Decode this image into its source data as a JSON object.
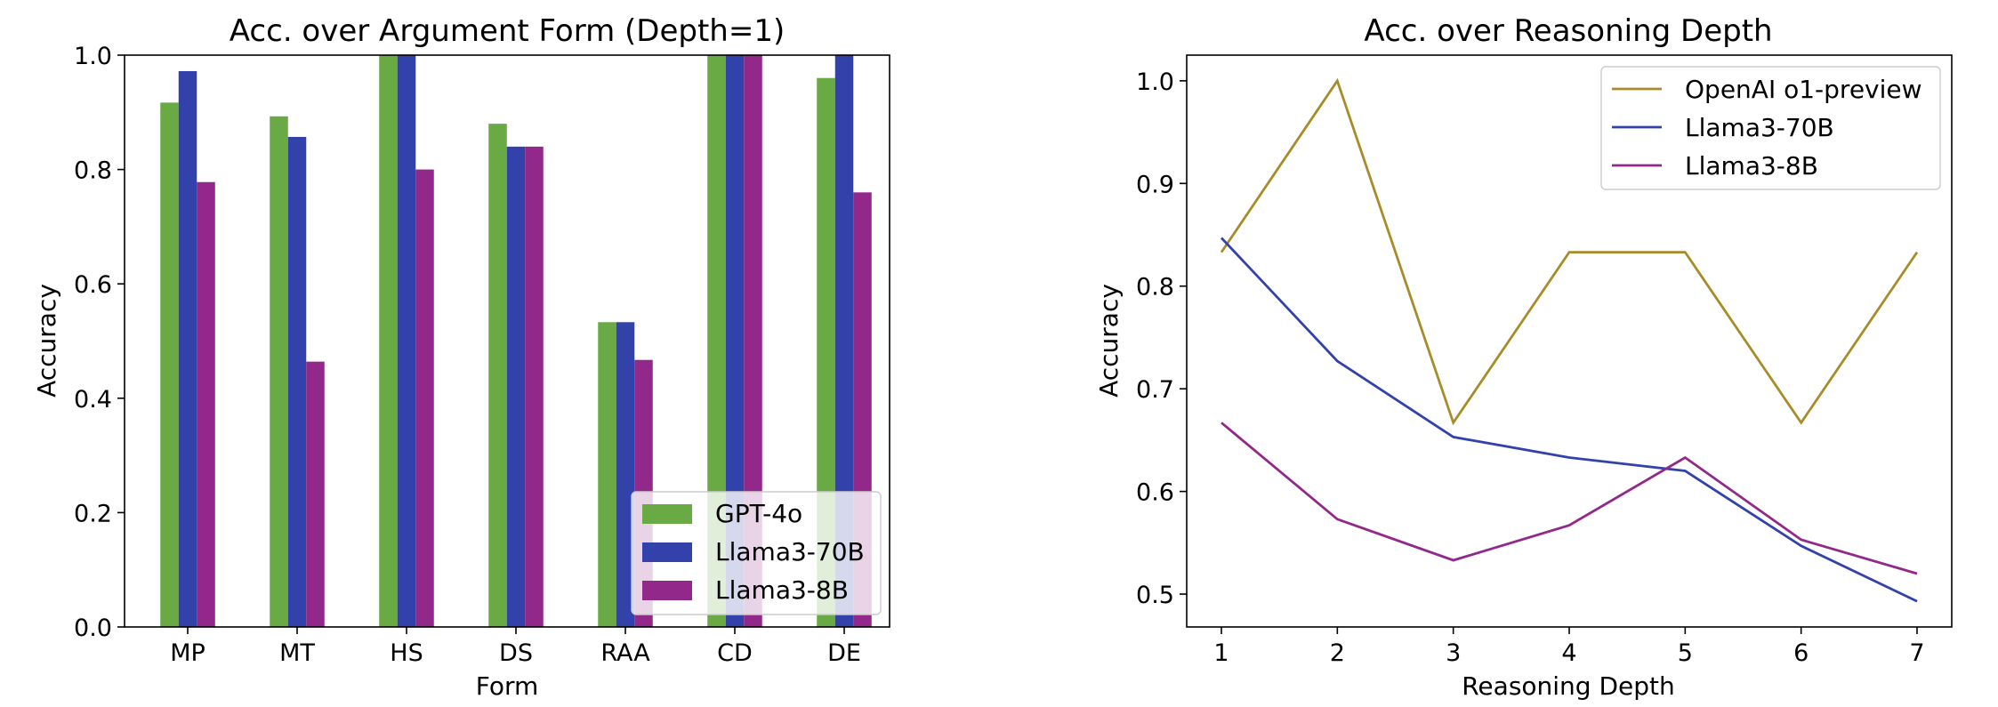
{
  "colors": {
    "gpt4o": "#6aaa45",
    "llama70b": "#3242aa",
    "llama8b": "#922889",
    "o1preview": "#a88c2a"
  },
  "chart_data": [
    {
      "type": "bar",
      "title": "Acc. over Argument Form (Depth=1)",
      "xlabel": "Form",
      "ylabel": "Accuracy",
      "ylim": [
        0,
        1.0
      ],
      "yticks": [
        "0.0",
        "0.2",
        "0.4",
        "0.6",
        "0.8",
        "1.0"
      ],
      "categories": [
        "MP",
        "MT",
        "HS",
        "DS",
        "RAA",
        "CD",
        "DE"
      ],
      "legend_position": "lower-right",
      "series": [
        {
          "name": "GPT-4o",
          "color": "#6aaa45",
          "values": [
            0.917,
            0.893,
            1.0,
            0.88,
            0.533,
            1.0,
            0.96
          ]
        },
        {
          "name": "Llama3-70B",
          "color": "#3242aa",
          "values": [
            0.972,
            0.857,
            1.0,
            0.84,
            0.533,
            1.0,
            1.0
          ]
        },
        {
          "name": "Llama3-8B",
          "color": "#922889",
          "values": [
            0.778,
            0.464,
            0.8,
            0.84,
            0.467,
            1.0,
            0.76
          ]
        }
      ]
    },
    {
      "type": "line",
      "title": "Acc. over Reasoning Depth",
      "xlabel": "Reasoning Depth",
      "ylabel": "Accuracy",
      "x": [
        1,
        2,
        3,
        4,
        5,
        6,
        7
      ],
      "xticks": [
        "1",
        "2",
        "3",
        "4",
        "5",
        "6",
        "7"
      ],
      "ylim": [
        0.468,
        1.025
      ],
      "yticks": [
        "0.5",
        "0.6",
        "0.7",
        "0.8",
        "0.9",
        "1.0"
      ],
      "legend_position": "upper-right",
      "series": [
        {
          "name": "OpenAI o1-preview",
          "color": "#a88c2a",
          "values": [
            0.833,
            1.0,
            0.667,
            0.833,
            0.833,
            0.667,
            0.833
          ]
        },
        {
          "name": "Llama3-70B",
          "color": "#3242aa",
          "values": [
            0.847,
            0.727,
            0.653,
            0.633,
            0.62,
            0.547,
            0.493
          ]
        },
        {
          "name": "Llama3-8B",
          "color": "#922889",
          "values": [
            0.667,
            0.573,
            0.533,
            0.567,
            0.633,
            0.553,
            0.52
          ]
        }
      ]
    }
  ]
}
